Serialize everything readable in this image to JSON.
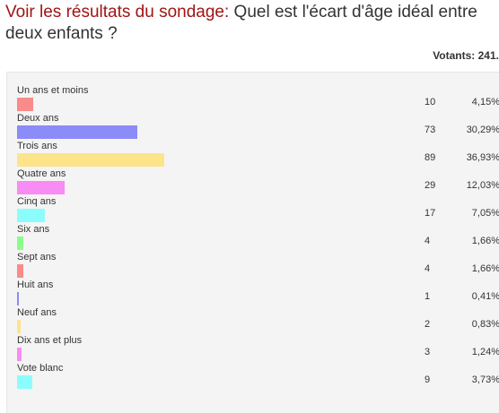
{
  "header": {
    "lead": "Voir les résultats du sondage:",
    "question": "Quel est l'écart d'âge idéal entre deux enfants ?",
    "voters": "Votants: 241."
  },
  "options": [
    {
      "label": "Un ans et moins",
      "count": "10",
      "percent": "4,15%",
      "share": 0.0415,
      "color": "#f98b8b"
    },
    {
      "label": "Deux ans",
      "count": "73",
      "percent": "30,29%",
      "share": 0.3029,
      "color": "#8b8bf9"
    },
    {
      "label": "Trois ans",
      "count": "89",
      "percent": "36,93%",
      "share": 0.3693,
      "color": "#fde48b"
    },
    {
      "label": "Quatre ans",
      "count": "29",
      "percent": "12,03%",
      "share": 0.1203,
      "color": "#f98bf5"
    },
    {
      "label": "Cinq ans",
      "count": "17",
      "percent": "7,05%",
      "share": 0.0705,
      "color": "#8bfdfd"
    },
    {
      "label": "Six ans",
      "count": "4",
      "percent": "1,66%",
      "share": 0.0166,
      "color": "#8bfd8b"
    },
    {
      "label": "Sept ans",
      "count": "4",
      "percent": "1,66%",
      "share": 0.0166,
      "color": "#f98b8b"
    },
    {
      "label": "Huit ans",
      "count": "1",
      "percent": "0,41%",
      "share": 0.0041,
      "color": "#8b8bf9"
    },
    {
      "label": "Neuf ans",
      "count": "2",
      "percent": "0,83%",
      "share": 0.0083,
      "color": "#fde48b"
    },
    {
      "label": "Dix ans et plus",
      "count": "3",
      "percent": "1,24%",
      "share": 0.0124,
      "color": "#f98bf5"
    },
    {
      "label": "Vote blanc",
      "count": "9",
      "percent": "3,73%",
      "share": 0.0373,
      "color": "#8bfdfd"
    }
  ]
}
